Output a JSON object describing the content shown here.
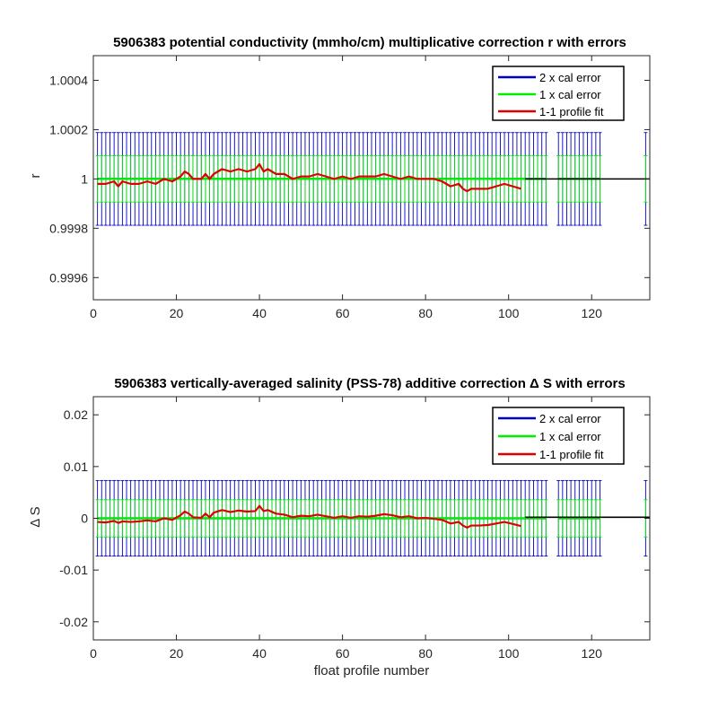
{
  "chart_data": [
    {
      "type": "line",
      "title": "5906383 potential conductivity (mmho/cm) multiplicative correction r with errors",
      "xlabel": "",
      "ylabel": "r",
      "xlim": [
        0,
        134
      ],
      "ylim": [
        0.99951,
        1.0005
      ],
      "xticks": [
        0,
        20,
        40,
        60,
        80,
        100,
        120
      ],
      "yticks": [
        0.9996,
        0.9998,
        1,
        1.0002,
        1.0004
      ],
      "ytick_labels": [
        "0.9996",
        "0.9998",
        "1",
        "1.0002",
        "1.0004"
      ],
      "grid": false,
      "legend_position": "top-right",
      "legend": [
        "2 x cal error",
        "1 x cal error",
        "1-1 profile fit"
      ],
      "error_bars": [
        {
          "name": "2 x cal error",
          "color": "#0000c8",
          "half_width": 0.000188,
          "x_ranges": [
            [
              1,
              109
            ],
            [
              112,
              122
            ],
            [
              133,
              133
            ]
          ]
        },
        {
          "name": "1 x cal error",
          "color": "#00ee00",
          "half_width": 9.4e-05,
          "x_ranges": [
            [
              1,
              109
            ],
            [
              112,
              122
            ],
            [
              133,
              133
            ]
          ]
        }
      ],
      "series": [
        {
          "name": "1-1 profile fit",
          "color": "#e00000",
          "x": [
            1,
            3,
            5,
            6,
            7,
            9,
            11,
            13,
            15,
            17,
            19,
            21,
            22,
            23,
            24,
            26,
            27,
            28,
            29,
            31,
            33,
            35,
            37,
            39,
            40,
            41,
            42,
            44,
            46,
            48,
            50,
            52,
            54,
            56,
            58,
            60,
            62,
            64,
            66,
            68,
            70,
            72,
            74,
            76,
            78,
            80,
            82,
            84,
            86,
            88,
            89,
            90,
            91,
            93,
            95,
            97,
            99,
            101,
            103
          ],
          "y": [
            0.99998,
            0.99998,
            0.99999,
            0.99997,
            0.99999,
            0.99998,
            0.99998,
            0.99999,
            0.99998,
            1.0,
            0.99999,
            1.00001,
            1.00003,
            1.00002,
            1.0,
            1.0,
            1.00002,
            1.0,
            1.00002,
            1.00004,
            1.00003,
            1.00004,
            1.00003,
            1.00004,
            1.00006,
            1.00003,
            1.00004,
            1.00002,
            1.00002,
            1.0,
            1.00001,
            1.00001,
            1.00002,
            1.00001,
            1.0,
            1.00001,
            1.0,
            1.00001,
            1.00001,
            1.00001,
            1.00002,
            1.00001,
            1.0,
            1.00001,
            1.0,
            1.0,
            1.0,
            0.99999,
            0.99997,
            0.99998,
            0.99996,
            0.99995,
            0.99996,
            0.99996,
            0.99996,
            0.99997,
            0.99998,
            0.99997,
            0.99996
          ]
        },
        {
          "name": "",
          "color": "#000000",
          "x": [
            104,
            134
          ],
          "y": [
            1.0,
            1.0
          ]
        }
      ]
    },
    {
      "type": "line",
      "title": "5906383 vertically-averaged salinity (PSS-78) additive correction Δ S with errors",
      "xlabel": "float profile number",
      "ylabel": "Δ S",
      "xlim": [
        0,
        134
      ],
      "ylim": [
        -0.0235,
        0.0235
      ],
      "xticks": [
        0,
        20,
        40,
        60,
        80,
        100,
        120
      ],
      "yticks": [
        -0.02,
        -0.01,
        0,
        0.01,
        0.02
      ],
      "ytick_labels": [
        "-0.02",
        "-0.01",
        "0",
        "0.01",
        "0.02"
      ],
      "grid": false,
      "legend_position": "top-right",
      "legend": [
        "2 x cal error",
        "1 x cal error",
        "1-1 profile fit"
      ],
      "error_bars": [
        {
          "name": "2 x cal error",
          "color": "#0000c8",
          "half_width": 0.0073,
          "x_ranges": [
            [
              1,
              109
            ],
            [
              112,
              122
            ],
            [
              133,
              133
            ]
          ]
        },
        {
          "name": "1 x cal error",
          "color": "#00ee00",
          "half_width": 0.0036,
          "x_ranges": [
            [
              1,
              109
            ],
            [
              112,
              122
            ],
            [
              133,
              133
            ]
          ]
        }
      ],
      "series": [
        {
          "name": "1-1 profile fit",
          "color": "#e00000",
          "x": [
            1,
            3,
            5,
            6,
            7,
            9,
            11,
            13,
            15,
            17,
            19,
            21,
            22,
            23,
            24,
            26,
            27,
            28,
            29,
            31,
            33,
            35,
            37,
            39,
            40,
            41,
            42,
            44,
            46,
            48,
            50,
            52,
            54,
            56,
            58,
            60,
            62,
            64,
            66,
            68,
            70,
            72,
            74,
            76,
            78,
            80,
            82,
            84,
            86,
            88,
            89,
            90,
            91,
            93,
            95,
            97,
            99,
            101,
            103
          ],
          "y": [
            -0.0007,
            -0.0008,
            -0.0005,
            -0.0009,
            -0.0006,
            -0.0007,
            -0.0006,
            -0.0004,
            -0.0006,
            0.0,
            -0.0003,
            0.0006,
            0.0013,
            0.0009,
            0.0002,
            0.0001,
            0.0009,
            0.0002,
            0.0011,
            0.0016,
            0.0012,
            0.0015,
            0.0013,
            0.0014,
            0.0024,
            0.0014,
            0.0016,
            0.0009,
            0.0007,
            0.0002,
            0.0005,
            0.0004,
            0.0007,
            0.0004,
            0.0001,
            0.0004,
            0.0001,
            0.0004,
            0.0003,
            0.0005,
            0.0008,
            0.0006,
            0.0002,
            0.0004,
            0.0,
            0.0001,
            -0.0001,
            -0.0003,
            -0.001,
            -0.0007,
            -0.0014,
            -0.0018,
            -0.0014,
            -0.0014,
            -0.0013,
            -0.001,
            -0.0007,
            -0.0011,
            -0.0015
          ]
        },
        {
          "name": "",
          "color": "#000000",
          "x": [
            104,
            134
          ],
          "y": [
            0.0002,
            0.0002
          ]
        }
      ]
    }
  ]
}
